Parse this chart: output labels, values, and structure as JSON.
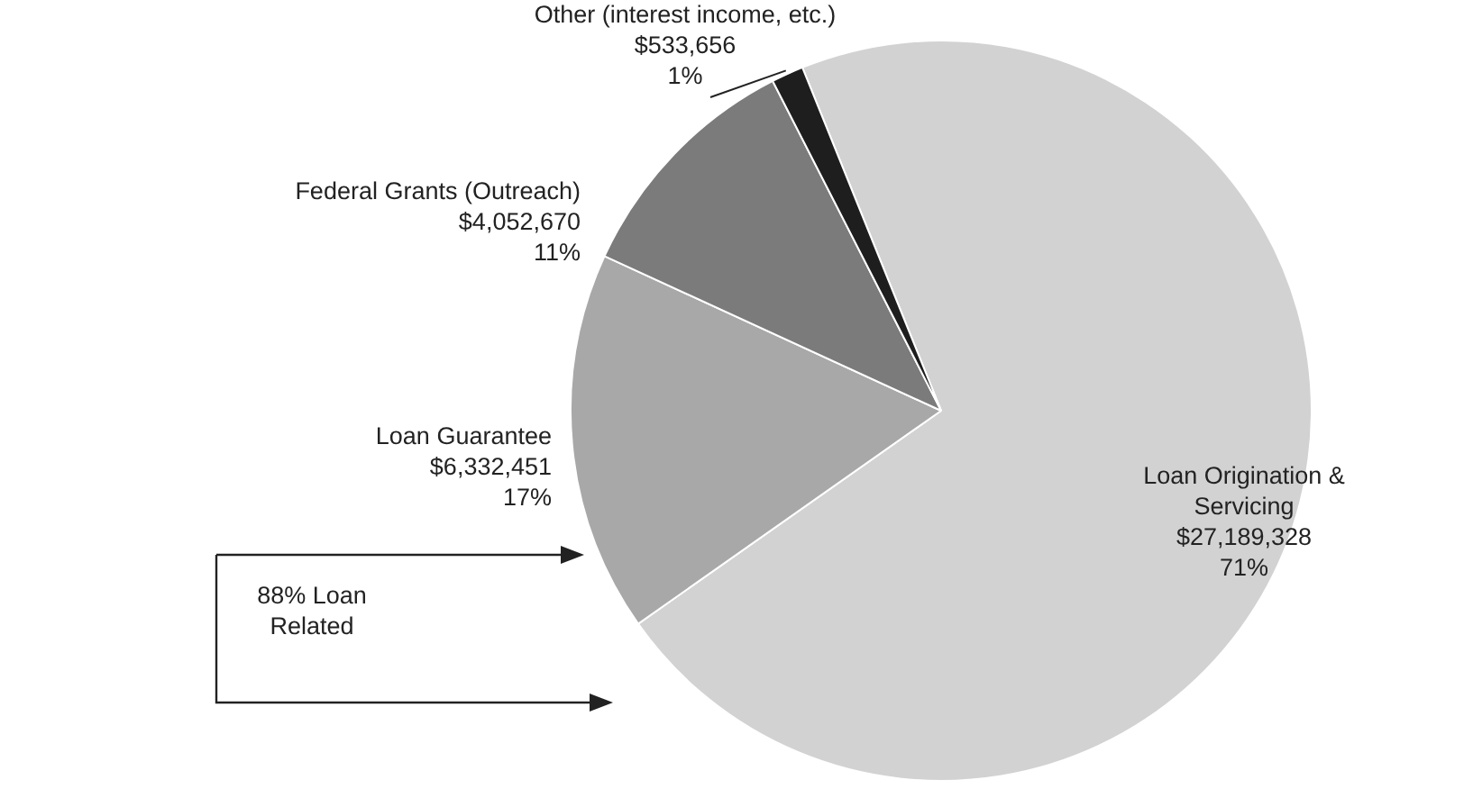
{
  "chart_data": {
    "type": "pie",
    "categories": [
      "Loan Origination & Servicing",
      "Loan Guarantee",
      "Federal Grants (Outreach)",
      "Other (interest income, etc.)"
    ],
    "values": [
      27189328,
      6332451,
      4052670,
      533656
    ],
    "value_labels": [
      "$27,189,328\n71%",
      "$6,332,451\n17%",
      "$4,052,670\n11%",
      "$533,656\n1%"
    ],
    "colors": [
      "#d2d2d2",
      "#a8a8a8",
      "#7b7b7b",
      "#1e1e1e"
    ],
    "annotations": [
      "88% Loan Related"
    ],
    "legend": false
  }
}
